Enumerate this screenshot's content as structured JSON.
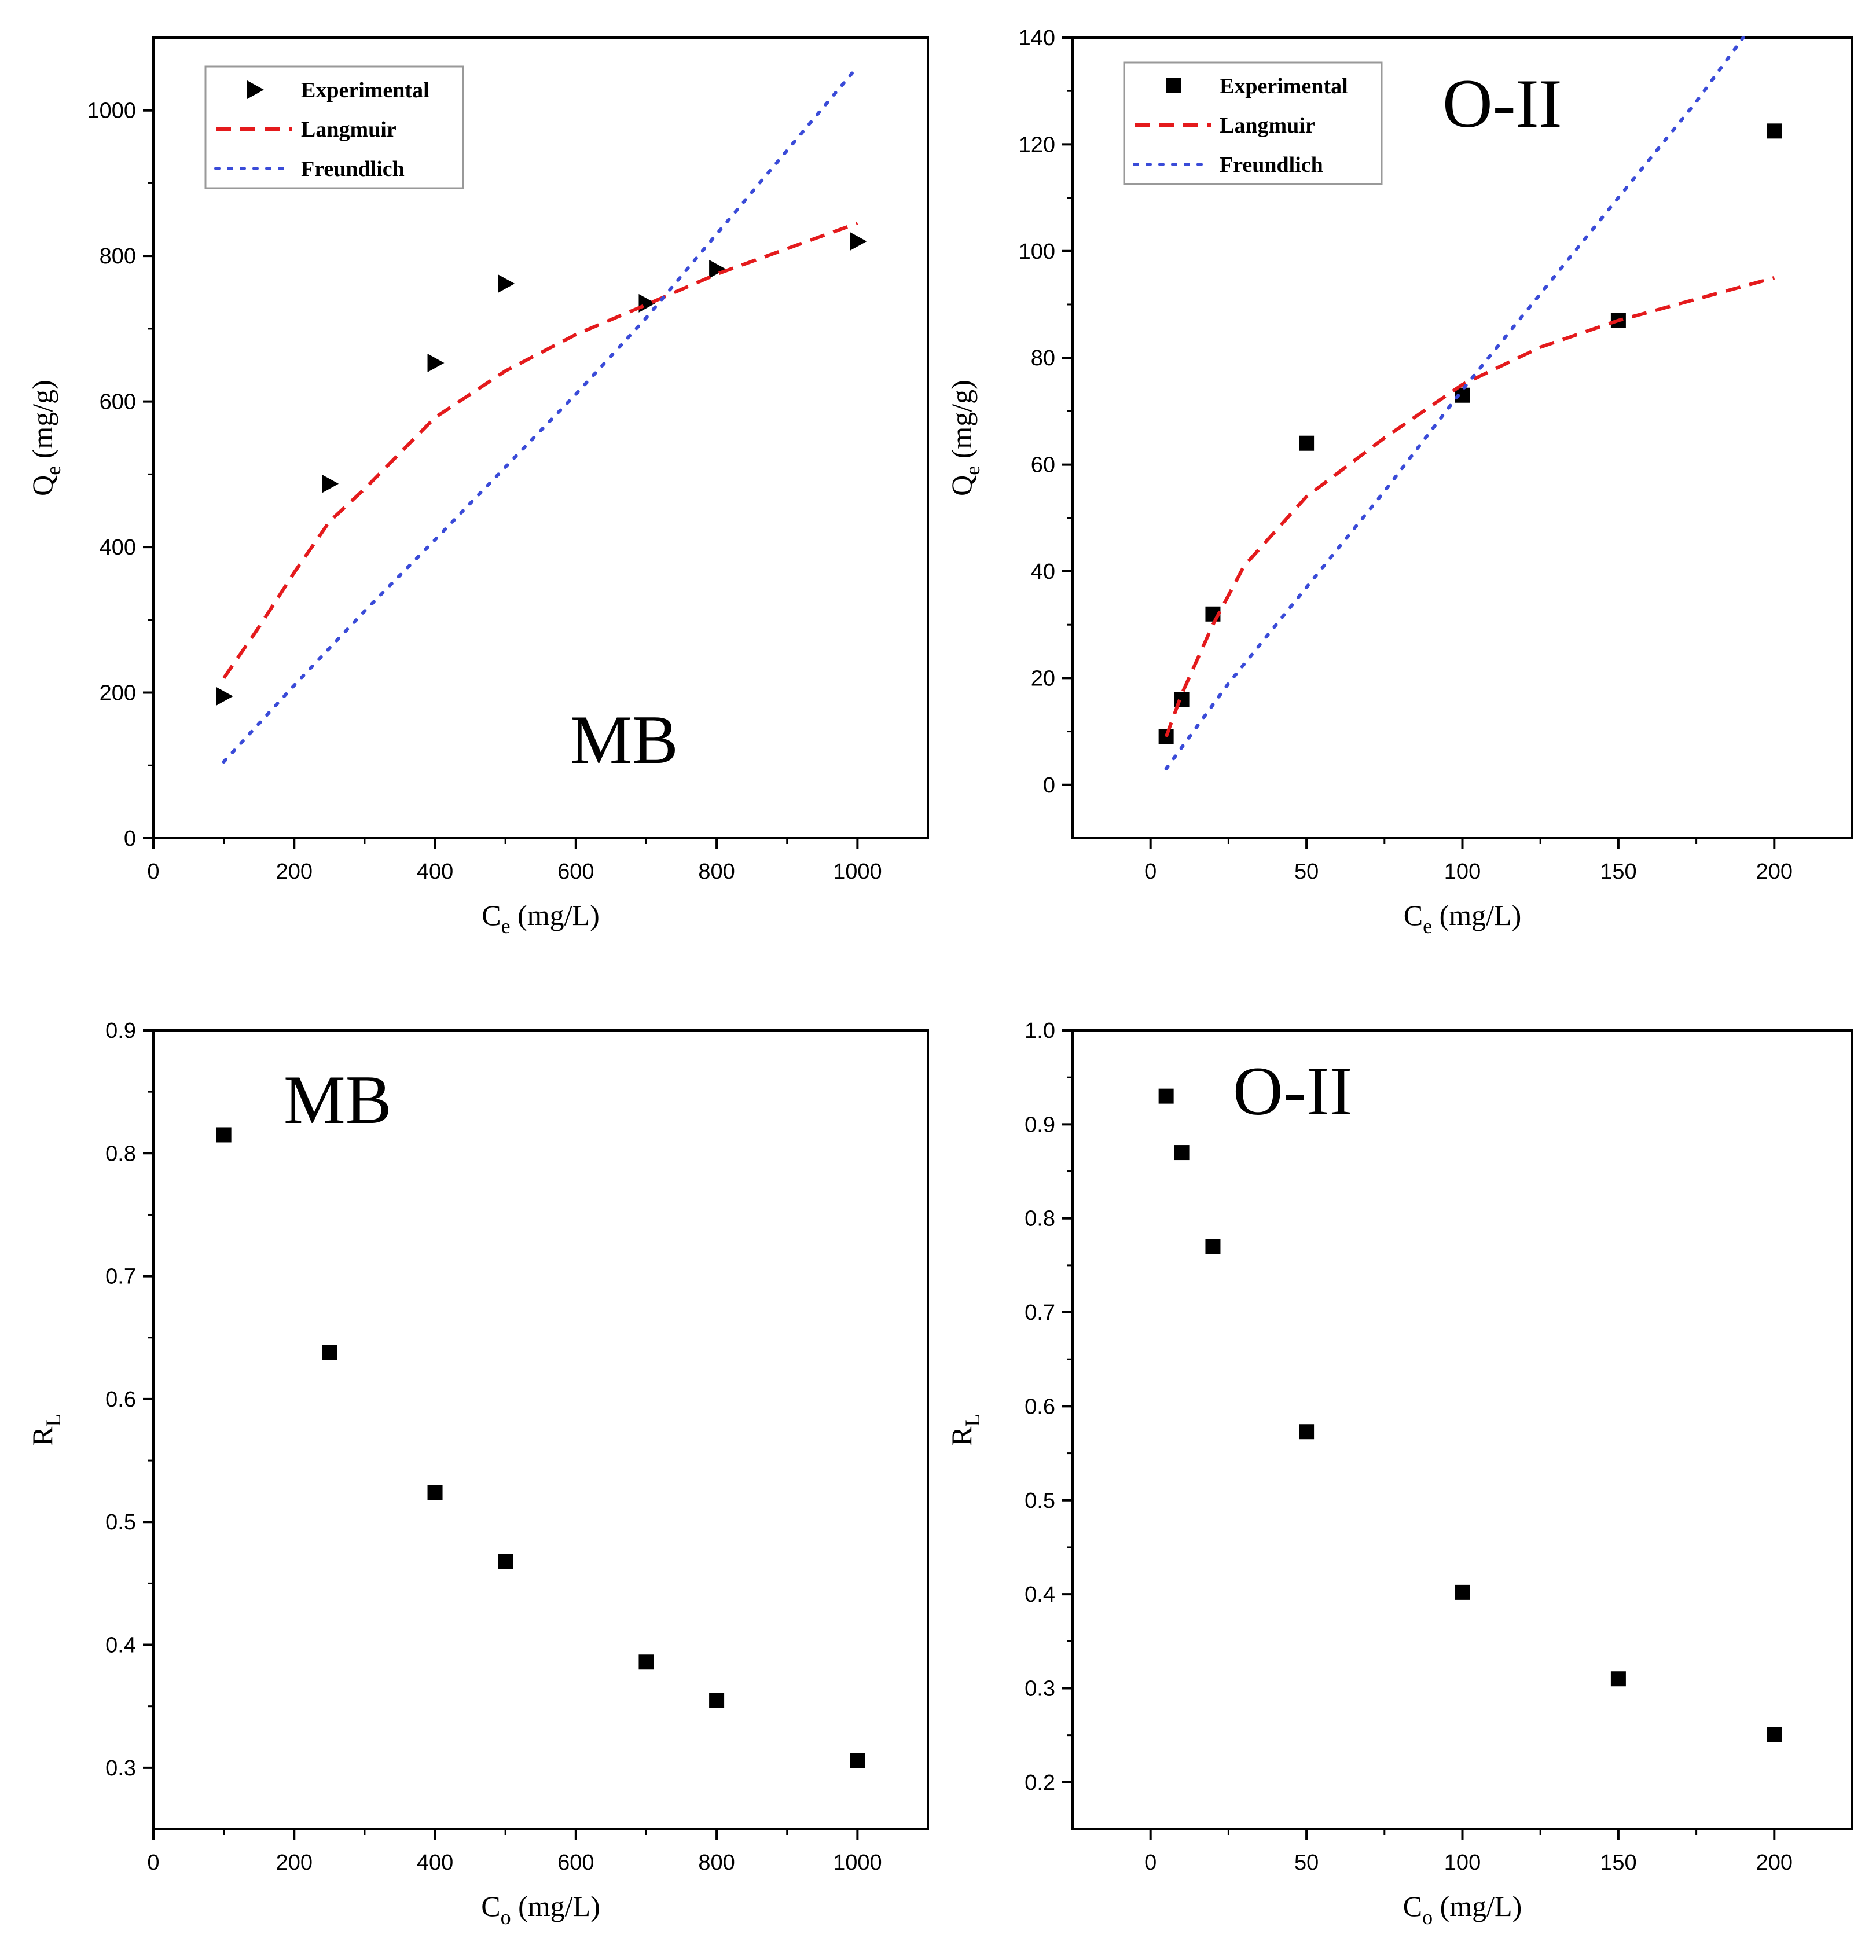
{
  "colors": {
    "langmuir": "#e41a1c",
    "freundlich": "#3a4bd8",
    "marker": "#000000"
  },
  "chart_data": [
    {
      "id": "mb-isotherm",
      "type": "scatter",
      "title": "MB",
      "xlabel": {
        "main": "C",
        "sub": "e",
        "unit": " (mg/L)"
      },
      "ylabel": {
        "main": "Q",
        "sub": "e",
        "unit": " (mg/g)"
      },
      "xlim": [
        0,
        1100
      ],
      "ylim": [
        0,
        1100
      ],
      "xticks": [
        0,
        200,
        400,
        600,
        800,
        1000
      ],
      "xtick_labels": [
        "0",
        "200",
        "400",
        "600",
        "800",
        "1000"
      ],
      "yticks": [
        0,
        200,
        400,
        600,
        800,
        1000
      ],
      "ytick_labels": [
        "0",
        "200",
        "400",
        "600",
        "800",
        "1000"
      ],
      "legend": {
        "position": "top-left",
        "entries": [
          "Experimental",
          "Langmuir",
          "Freundlich"
        ]
      },
      "series": [
        {
          "name": "Experimental",
          "kind": "points",
          "marker": "triangle-right",
          "x": [
            100,
            250,
            400,
            500,
            700,
            800,
            1000
          ],
          "y": [
            195,
            487,
            653,
            762,
            735,
            782,
            820
          ]
        },
        {
          "name": "Langmuir",
          "kind": "dashed-line",
          "x": [
            100,
            150,
            200,
            250,
            300,
            400,
            500,
            600,
            700,
            800,
            900,
            1000
          ],
          "y": [
            220,
            290,
            365,
            435,
            480,
            578,
            642,
            692,
            733,
            775,
            810,
            845
          ]
        },
        {
          "name": "Freundlich",
          "kind": "dotted-line",
          "x": [
            100,
            200,
            300,
            400,
            500,
            600,
            700,
            800,
            900,
            1000
          ],
          "y": [
            105,
            210,
            312,
            410,
            510,
            610,
            715,
            830,
            945,
            1060
          ]
        }
      ]
    },
    {
      "id": "oii-isotherm",
      "type": "scatter",
      "title": "O-II",
      "xlabel": {
        "main": "C",
        "sub": "e",
        "unit": " (mg/L)"
      },
      "ylabel": {
        "main": "Q",
        "sub": "e",
        "unit": " (mg/g)"
      },
      "xlim": [
        -25,
        225
      ],
      "ylim": [
        -10,
        140
      ],
      "xticks": [
        0,
        50,
        100,
        150,
        200
      ],
      "xtick_labels": [
        "0",
        "50",
        "100",
        "150",
        "200"
      ],
      "yticks": [
        0,
        20,
        40,
        60,
        80,
        100,
        120,
        140
      ],
      "ytick_labels": [
        "0",
        "20",
        "40",
        "60",
        "80",
        "100",
        "120",
        "140"
      ],
      "legend": {
        "position": "top-left",
        "entries": [
          "Experimental",
          "Langmuir",
          "Freundlich"
        ]
      },
      "series": [
        {
          "name": "Experimental",
          "kind": "points",
          "marker": "square",
          "x": [
            5,
            10,
            20,
            50,
            100,
            150,
            200
          ],
          "y": [
            9,
            16,
            32,
            64,
            73,
            87,
            122.5
          ]
        },
        {
          "name": "Langmuir",
          "kind": "dashed-line",
          "x": [
            5,
            10,
            20,
            30,
            50,
            75,
            100,
            125,
            150,
            175,
            200
          ],
          "y": [
            9,
            17,
            30,
            41,
            54,
            65,
            75,
            82,
            87,
            91,
            95
          ]
        },
        {
          "name": "Freundlich",
          "kind": "dotted-line",
          "x": [
            5,
            25,
            50,
            75,
            100,
            125,
            150,
            175,
            190
          ],
          "y": [
            3,
            19,
            37,
            55,
            74,
            92,
            110,
            128,
            140
          ]
        }
      ]
    },
    {
      "id": "mb-rl",
      "type": "scatter",
      "title": "MB",
      "xlabel": {
        "main": "C",
        "sub": "o",
        "unit": " (mg/L)"
      },
      "ylabel": {
        "main": "R",
        "sub": "L",
        "unit": ""
      },
      "xlim": [
        0,
        1100
      ],
      "ylim": [
        0.25,
        0.9
      ],
      "xticks": [
        0,
        200,
        400,
        600,
        800,
        1000
      ],
      "xtick_labels": [
        "0",
        "200",
        "400",
        "600",
        "800",
        "1000"
      ],
      "yticks": [
        0.3,
        0.4,
        0.5,
        0.6,
        0.7,
        0.8,
        0.9
      ],
      "ytick_labels": [
        "0.3",
        "0.4",
        "0.5",
        "0.6",
        "0.7",
        "0.8",
        "0.9"
      ],
      "series": [
        {
          "name": "RL",
          "kind": "points",
          "marker": "square",
          "x": [
            100,
            250,
            400,
            500,
            700,
            800,
            1000
          ],
          "y": [
            0.815,
            0.638,
            0.524,
            0.468,
            0.386,
            0.355,
            0.306
          ]
        }
      ]
    },
    {
      "id": "oii-rl",
      "type": "scatter",
      "title": "O-II",
      "xlabel": {
        "main": "C",
        "sub": "o",
        "unit": " (mg/L)"
      },
      "ylabel": {
        "main": "R",
        "sub": "L",
        "unit": ""
      },
      "xlim": [
        -25,
        225
      ],
      "ylim": [
        0.15,
        1.0
      ],
      "xticks": [
        0,
        50,
        100,
        150,
        200
      ],
      "xtick_labels": [
        "0",
        "50",
        "100",
        "150",
        "200"
      ],
      "yticks": [
        0.2,
        0.3,
        0.4,
        0.5,
        0.6,
        0.7,
        0.8,
        0.9,
        1.0
      ],
      "ytick_labels": [
        "0.2",
        "0.3",
        "0.4",
        "0.5",
        "0.6",
        "0.7",
        "0.8",
        "0.9",
        "1.0"
      ],
      "series": [
        {
          "name": "RL",
          "kind": "points",
          "marker": "square",
          "x": [
            5,
            10,
            20,
            50,
            100,
            150,
            200
          ],
          "y": [
            0.93,
            0.87,
            0.77,
            0.573,
            0.402,
            0.31,
            0.251
          ]
        }
      ]
    }
  ]
}
